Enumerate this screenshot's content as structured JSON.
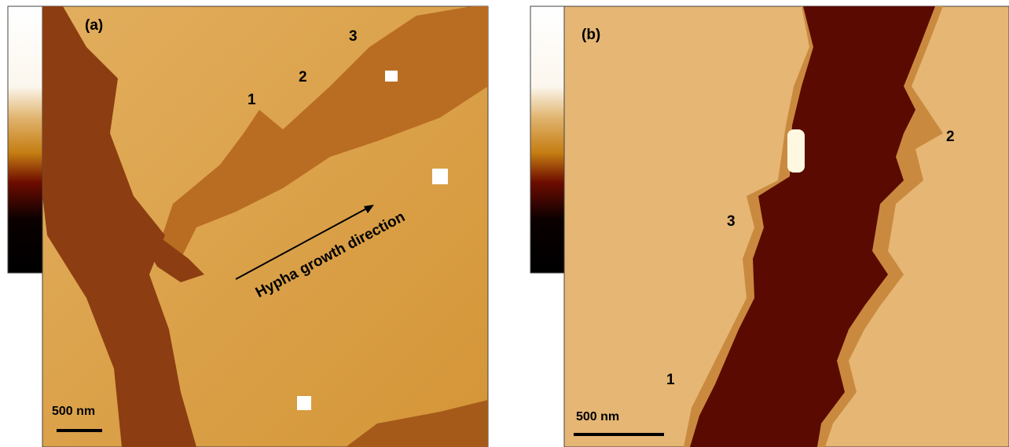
{
  "panels": [
    {
      "label": "(a)",
      "markers": [
        "1",
        "2",
        "3"
      ],
      "annotation": "Hypha growth direction",
      "scale_bar": "500 nm"
    },
    {
      "label": "(b)",
      "markers": [
        "1",
        "2",
        "3"
      ],
      "scale_bar": "500 nm"
    }
  ]
}
